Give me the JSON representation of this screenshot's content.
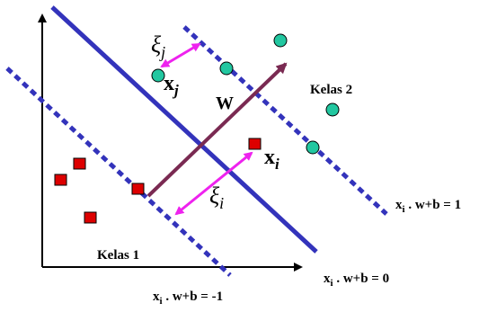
{
  "labels": {
    "class1": "Kelas 1",
    "class2": "Kelas 2",
    "weight_vector": "W",
    "xi_sym": "ξ",
    "xi_sub_j": "j",
    "xi_sub_i": "i",
    "xj_bold": "x",
    "xj_sub": "j",
    "xi_bold": "x",
    "xi_sub": "i",
    "eq_upper": {
      "a": "x",
      "b": "i",
      "c": " . w+b = 1"
    },
    "eq_middle": {
      "a": "x",
      "b": "i",
      "c": " . w+b = 0"
    },
    "eq_lower": {
      "a": "x",
      "b": "i",
      "c": " . w+b = -1"
    }
  },
  "colors": {
    "hyperplane": "#3333bb",
    "margin": "#3333bb",
    "weight_arrow": "#7a2a52",
    "slack_arrow": "#ee22ee",
    "class1_fill": "#dd0000",
    "class2_fill": "#22c7a0",
    "axis": "#000000"
  },
  "icons": {
    "class1_marker": "red-square",
    "class2_marker": "teal-circle"
  }
}
